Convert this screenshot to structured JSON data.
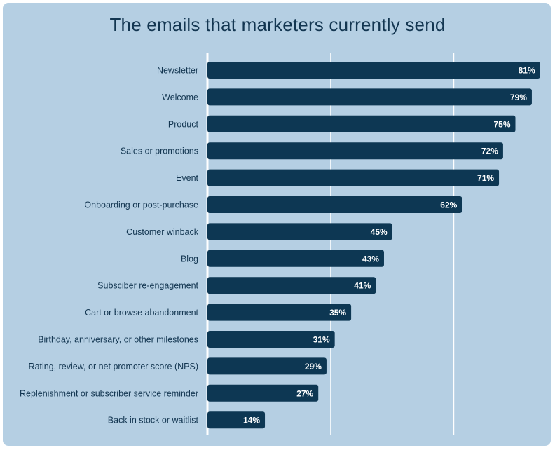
{
  "colors": {
    "background": "#b5cfe3",
    "bar": "#0d3753",
    "title": "#133651",
    "gridline": "#ffffff",
    "value_text": "#ffffff"
  },
  "chart_data": {
    "type": "bar",
    "orientation": "horizontal",
    "title": "The emails that marketers currently send",
    "xlabel": "",
    "ylabel": "",
    "xlim": [
      0,
      100
    ],
    "grid": true,
    "unit": "%",
    "categories": [
      "Newsletter",
      "Welcome",
      "Product",
      "Sales or promotions",
      "Event",
      "Onboarding or post-purchase",
      "Customer winback",
      "Blog",
      "Subsciber re-engagement",
      "Cart or browse abandonment",
      "Birthday, anniversary, or other milestones",
      "Rating, review, or net promoter score (NPS)",
      "Replenishment or subscriber service reminder",
      "Back in stock or waitlist"
    ],
    "values": [
      81,
      79,
      75,
      72,
      71,
      62,
      45,
      43,
      41,
      35,
      31,
      29,
      27,
      14
    ],
    "value_labels": [
      "81%",
      "79%",
      "75%",
      "72%",
      "71%",
      "62%",
      "45%",
      "43%",
      "41%",
      "35%",
      "31%",
      "29%",
      "27%",
      "14%"
    ]
  }
}
